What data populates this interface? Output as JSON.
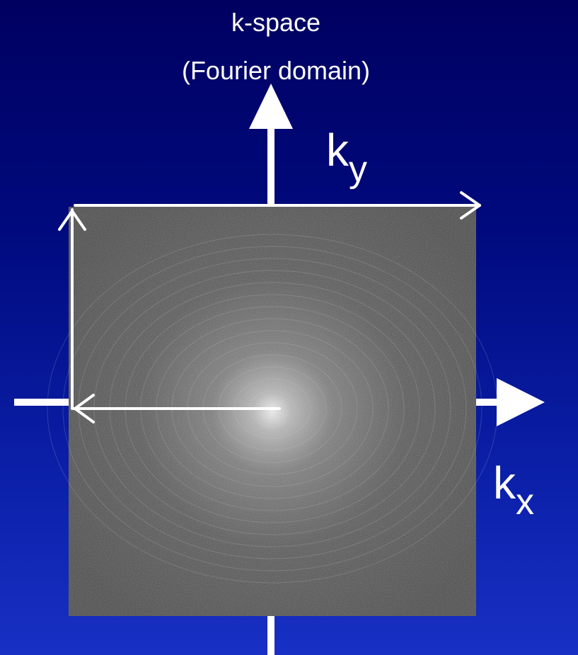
{
  "title": {
    "line1": "k-space",
    "line2": "(Fourier domain)"
  },
  "axes": {
    "ky": {
      "base": "k",
      "sub": "y"
    },
    "kx": {
      "base": "k",
      "sub": "x"
    }
  },
  "colors": {
    "background_top": "#000060",
    "background_bottom": "#1830c4",
    "foreground": "#ffffff"
  }
}
